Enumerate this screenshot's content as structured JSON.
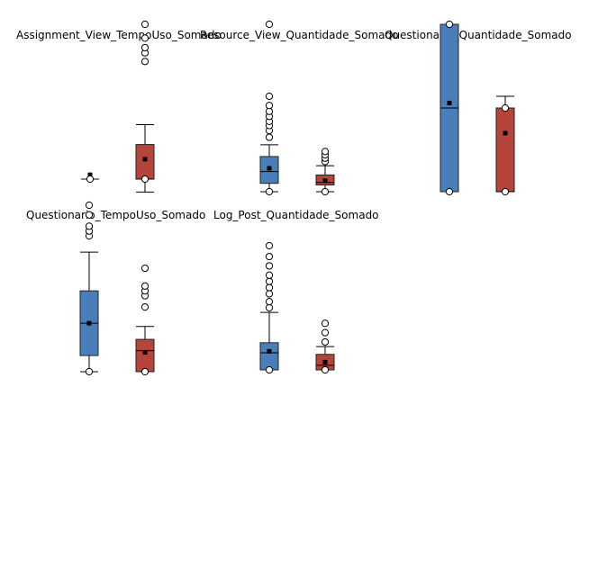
{
  "chart_data": [
    {
      "type": "boxplot",
      "title": "Assignment_View_TempoUso_Somado",
      "series": [
        {
          "color": "#4a7ebb",
          "min": 0,
          "q1": 0,
          "median": 0,
          "q3": 0,
          "max": 0,
          "mean": 0.5,
          "outliers": [
            0
          ]
        },
        {
          "color": "#b5443b",
          "min": -1.5,
          "q1": 0,
          "median": 0,
          "q3": 4,
          "max": 6.3,
          "mean": 2.3,
          "outliers": [
            0,
            13.6,
            14.6,
            15.2,
            16.3,
            17.9
          ]
        }
      ]
    },
    {
      "type": "boxplot",
      "title": "Resource_View_Quantidade_Somado",
      "series": [
        {
          "color": "#4a7ebb",
          "min": 0,
          "q1": 1,
          "median": 2.4,
          "q3": 4.2,
          "max": 5.6,
          "mean": 2.8,
          "outliers": [
            0,
            6.5,
            7.3,
            7.9,
            8.4,
            9.0,
            9.6,
            10.3,
            11.4,
            20
          ]
        },
        {
          "color": "#b5443b",
          "min": 0,
          "q1": 0.8,
          "median": 1.1,
          "q3": 2,
          "max": 3.1,
          "mean": 1.3,
          "outliers": [
            0,
            3.6,
            4.0,
            4.4,
            4.8
          ]
        }
      ]
    },
    {
      "type": "boxplot",
      "title": "Questionario_Quantidade_Somado",
      "series": [
        {
          "color": "#4a7ebb",
          "min": 0,
          "q1": 0,
          "median": 5,
          "q3": 10,
          "max": 10,
          "mean": 5.3,
          "outliers": [
            0,
            10
          ]
        },
        {
          "color": "#b5443b",
          "min": 0,
          "q1": 0,
          "median": 0,
          "q3": 5,
          "max": 5.7,
          "mean": 3.5,
          "outliers": [
            0,
            5
          ]
        }
      ]
    },
    {
      "type": "boxplot",
      "title": "Questionario_TempoUso_Somado",
      "series": [
        {
          "color": "#4a7ebb",
          "min": 0,
          "q1": 1,
          "median": 3,
          "q3": 5,
          "max": 7.4,
          "mean": 3,
          "outliers": [
            0,
            8.4,
            8.7,
            9.0,
            9.7,
            10.3
          ]
        },
        {
          "color": "#b5443b",
          "min": 0,
          "q1": 0,
          "median": 1.3,
          "q3": 2,
          "max": 2.8,
          "mean": 1.2,
          "outliers": [
            0,
            4,
            4.7,
            5,
            5.3,
            6.4
          ]
        }
      ]
    },
    {
      "type": "boxplot",
      "title": "Log_Post_Quantidade_Somado",
      "series": [
        {
          "color": "#4a7ebb",
          "min": 0,
          "q1": 0,
          "median": 1.1,
          "q3": 1.75,
          "max": 3.7,
          "mean": 1.2,
          "outliers": [
            0,
            4,
            4.4,
            4.9,
            5.3,
            5.7,
            6.1,
            6.7,
            7.3,
            8
          ]
        },
        {
          "color": "#b5443b",
          "min": 0,
          "q1": 0,
          "median": 0.3,
          "q3": 1,
          "max": 1.5,
          "mean": 0.5,
          "outliers": [
            0,
            1.8,
            2.4,
            3
          ]
        }
      ]
    }
  ]
}
